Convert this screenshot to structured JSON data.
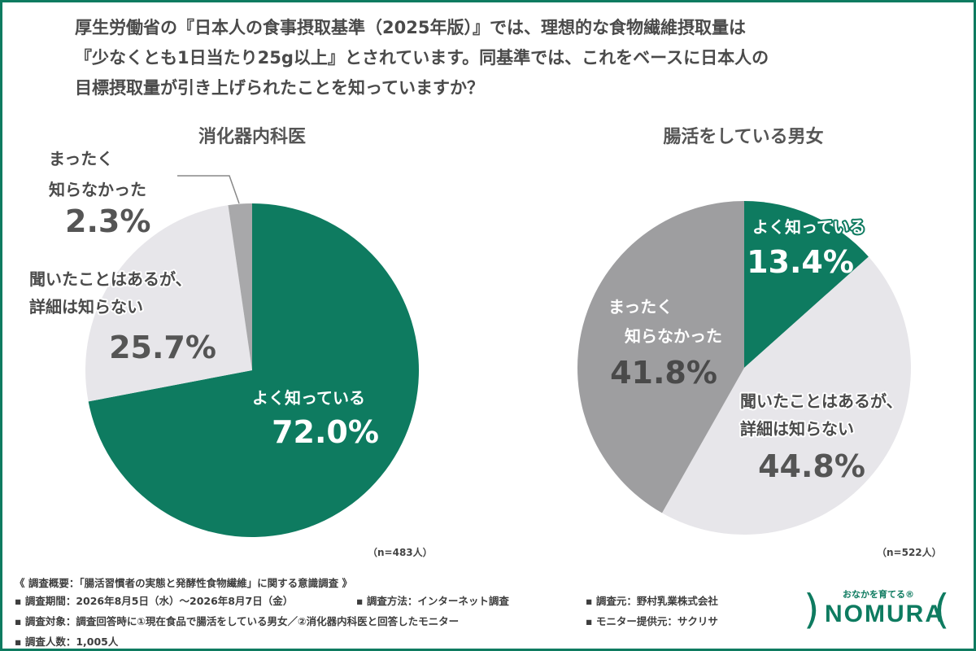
{
  "question": {
    "line1": "厚生労働省の『日本人の食事摂取基準（2025年版）』では、理想的な食物繊維摂取量は",
    "line2": "『少なくとも1日当たり25g以上』とされています。同基準では、これをベースに日本人の",
    "line3": "目標摂取量が引き上げられたことを知っていますか？"
  },
  "colors": {
    "green": "#0e7b60",
    "light_gray": "#e7e6ea",
    "mid_gray": "#a8a8aa",
    "dark_gray": "#9e9ea0"
  },
  "chart_data": [
    {
      "type": "pie",
      "title": "消化器内科医",
      "n": "（n=483人）",
      "slices": [
        {
          "label_lines": [
            "よく知っている"
          ],
          "value": 72.0,
          "display": "72.0%"
        },
        {
          "label_lines": [
            "聞いたことはあるが、",
            "詳細は知らない"
          ],
          "value": 25.7,
          "display": "25.7%"
        },
        {
          "label_lines": [
            "まったく",
            "知らなかった"
          ],
          "value": 2.3,
          "display": "2.3%"
        }
      ]
    },
    {
      "type": "pie",
      "title": "腸活をしている男女",
      "n": "（n=522人）",
      "slices": [
        {
          "label_lines": [
            "よく知っている"
          ],
          "value": 13.4,
          "display": "13.4%"
        },
        {
          "label_lines": [
            "聞いたことはあるが、",
            "詳細は知らない"
          ],
          "value": 44.8,
          "display": "44.8%"
        },
        {
          "label_lines": [
            "まったく",
            "知らなかった"
          ],
          "value": 41.8,
          "display": "41.8%"
        }
      ]
    }
  ],
  "footer": {
    "overview": "《 調査概要：「腸活習慣者の実態と発酵性食物繊維」に関する意識調査 》",
    "period": "▪ 調査期間：2026年8月5日（水）～2026年8月7日（金）",
    "method": "▪ 調査方法：インターネット調査",
    "source": "▪ 調査元：野村乳業株式会社",
    "target": "▪ 調査対象：調査回答時に①現在食品で腸活をしている男女／②消化器内科医と回答したモニター",
    "monitor": "▪ モニター提供元：サクリサ",
    "count": "▪ 調査人数：1,005人"
  },
  "logo": {
    "tagline": "おなかを育てる®",
    "wordmark": "NOMURA"
  }
}
